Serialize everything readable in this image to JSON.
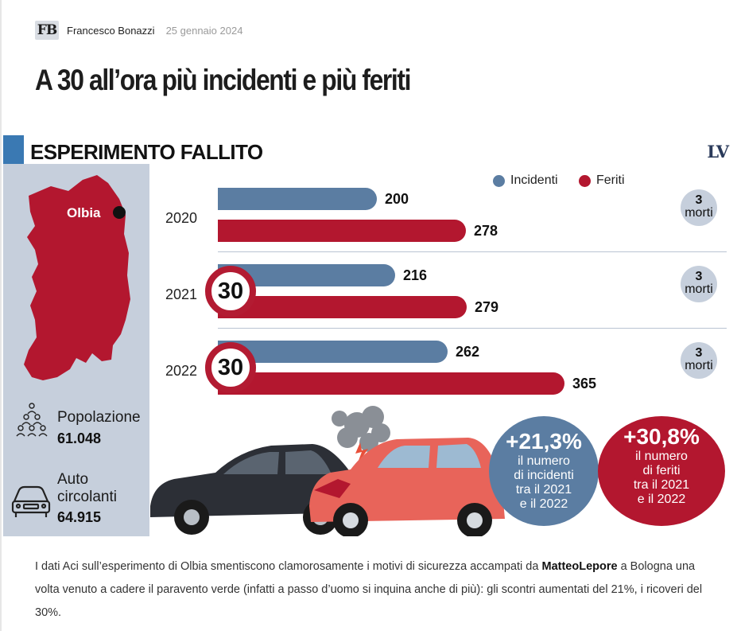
{
  "byline": {
    "logo": "FB",
    "author": "Francesco Bonazzi",
    "date": "25 gennaio 2024"
  },
  "headline": "A 30 all’ora più incidenti e più feriti",
  "infographic": {
    "section_title": "ESPERIMENTO FALLITO",
    "logo": "LV",
    "map_label": "Olbia",
    "population": {
      "label": "Popolazione",
      "value": "61.048",
      "icon": "population-icon"
    },
    "cars": {
      "label_line1": "Auto",
      "label_line2": "circolanti",
      "value": "64.915",
      "icon": "car-icon"
    },
    "speed_limit": "30",
    "deaths_number": "3",
    "deaths_word": "morti",
    "badges": {
      "incidents": {
        "pct": "+21,3%",
        "line1": "il numero",
        "line2": "di incidenti",
        "line3": "tra il 2021",
        "line4": "e il 2022"
      },
      "injured": {
        "pct": "+30,8%",
        "line1": "il numero",
        "line2": "di feriti",
        "line3": "tra il 2021",
        "line4": "e il 2022"
      }
    },
    "colors": {
      "incidents": "#5b7da2",
      "injured": "#b3172f",
      "accent": "#3a79b3",
      "panel": "#c6cfdc"
    }
  },
  "chart_data": {
    "type": "bar",
    "orientation": "horizontal",
    "categories": [
      "2020",
      "2021",
      "2022"
    ],
    "series": [
      {
        "name": "Incidenti",
        "values": [
          200,
          216,
          262
        ],
        "color": "#5b7da2"
      },
      {
        "name": "Feriti",
        "values": [
          278,
          279,
          365
        ],
        "color": "#b3172f"
      }
    ],
    "value_labels": {
      "Incidenti": [
        "200",
        "216",
        "262"
      ],
      "Feriti": [
        "278",
        "279",
        "365"
      ]
    },
    "annotations": {
      "deaths": [
        3,
        3,
        3
      ],
      "speed_limit_30": [
        false,
        true,
        true
      ]
    },
    "xlim": [
      0,
      380
    ],
    "legend": "top-right",
    "grid": false
  },
  "caption": {
    "text_before": "I dati Aci sull’esperimento di Olbia smentiscono clamorosamente i motivi di sicurezza accampati da ",
    "bold": "MatteoLepore",
    "text_after": " a Bologna una volta venuto a cadere il paravento verde (infatti a passo d’uomo si inquina anche di più): gli scontri aumentati del 21%, i ricoveri del 30%."
  }
}
